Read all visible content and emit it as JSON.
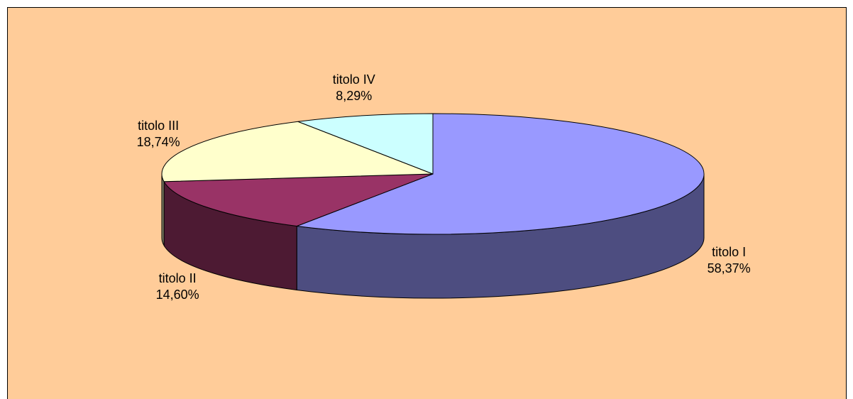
{
  "chart_data": {
    "type": "pie3d",
    "categories": [
      "titolo I",
      "titolo II",
      "titolo III",
      "titolo IV"
    ],
    "values": [
      58.37,
      14.6,
      18.74,
      8.29
    ],
    "value_labels": [
      "58,37%",
      "14,60%",
      "18,74%",
      "8,29%"
    ],
    "colors": [
      "#9999ff",
      "#993366",
      "#ffffcc",
      "#ccffff"
    ],
    "background": "#ffcc99"
  }
}
